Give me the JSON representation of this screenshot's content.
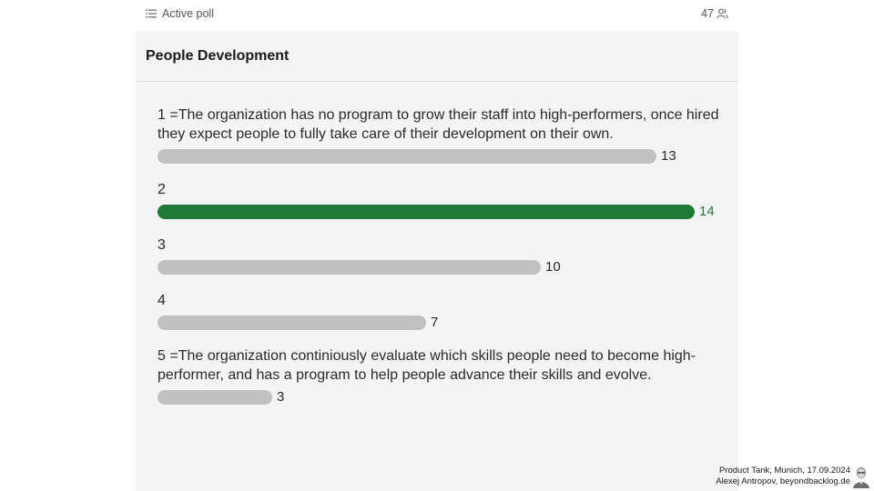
{
  "header": {
    "status_label": "Active poll",
    "participants_count": "47",
    "list_icon": "list-icon",
    "participants_icon": "people-icon"
  },
  "poll": {
    "title": "People Development",
    "max_value": 14,
    "options": [
      {
        "label": "1 =The organization has no program to grow their staff into high-performers, once hired they expect people to fully take care of their development on their own.",
        "votes": 13,
        "leader": false
      },
      {
        "label": "2",
        "votes": 14,
        "leader": true
      },
      {
        "label": "3",
        "votes": 10,
        "leader": false
      },
      {
        "label": "4",
        "votes": 7,
        "leader": false
      },
      {
        "label": "5 =The organization continiously evaluate which skills people need to become high-performer, and has a program to help people advance their skills and evolve.",
        "votes": 3,
        "leader": false
      }
    ]
  },
  "colors": {
    "leader_bar": "#1f7a38",
    "default_bar": "#c0c0c0",
    "card_background": "#f4f4f4"
  },
  "footer": {
    "line1": "Product Tank, Munich, 17.09.2024",
    "line2": "Alexej Antropov, beyondbacklog.de",
    "avatar_icon": "avatar-icon"
  }
}
